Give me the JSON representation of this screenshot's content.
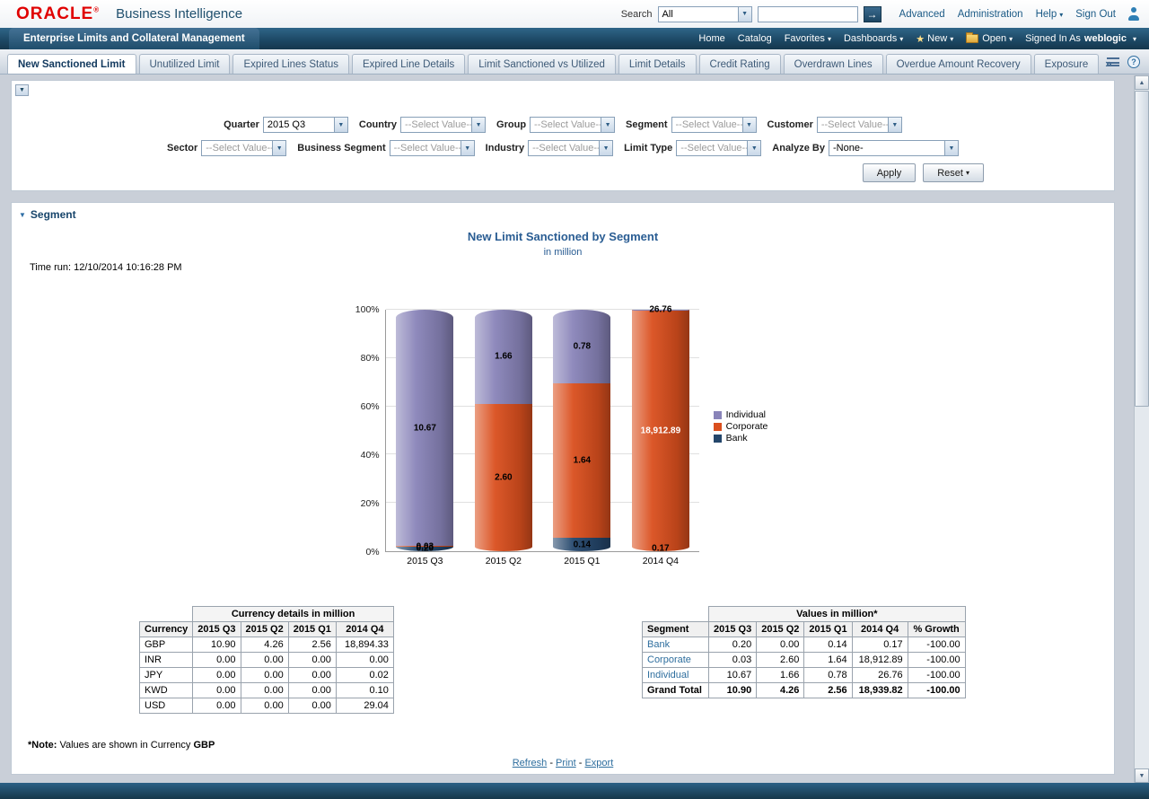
{
  "colors": {
    "oracle_red": "#e00000",
    "navbar_navy": "#1d4a63",
    "title_blue": "#2a5d93",
    "link_blue": "#2e6e9e"
  },
  "icons": {
    "go": "→",
    "caret": "▾",
    "select_arrow": "▼",
    "collapse": "▼",
    "overflow": "»",
    "help": "?",
    "up": "▲",
    "down": "▼",
    "new_star": "★"
  },
  "header": {
    "logo": "ORACLE",
    "logo_mark": "®",
    "product_name": "Business Intelligence",
    "search": {
      "label": "Search",
      "scope_value": "All",
      "input_value": ""
    },
    "links": [
      {
        "label": "Advanced",
        "caret": false
      },
      {
        "label": "Administration",
        "caret": false
      },
      {
        "label": "Help",
        "caret": true
      },
      {
        "label": "Sign Out",
        "caret": false
      }
    ]
  },
  "navbar": {
    "module_tab": "Enterprise Limits and Collateral Management",
    "items": [
      {
        "label": "Home",
        "caret": false,
        "icon": ""
      },
      {
        "label": "Catalog",
        "caret": false,
        "icon": ""
      },
      {
        "label": "Favorites",
        "caret": true,
        "icon": ""
      },
      {
        "label": "Dashboards",
        "caret": true,
        "icon": ""
      },
      {
        "label": "New",
        "caret": true,
        "icon": "new"
      },
      {
        "label": "Open",
        "caret": true,
        "icon": "folder"
      }
    ],
    "signed_in_as": "Signed In As",
    "user": "weblogic"
  },
  "tabs": [
    {
      "label": "New Sanctioned Limit",
      "active": true
    },
    {
      "label": "Unutilized Limit",
      "active": false
    },
    {
      "label": "Expired Lines Status",
      "active": false
    },
    {
      "label": "Expired Line Details",
      "active": false
    },
    {
      "label": "Limit Sanctioned vs Utilized",
      "active": false
    },
    {
      "label": "Limit Details",
      "active": false
    },
    {
      "label": "Credit Rating",
      "active": false
    },
    {
      "label": "Overdrawn Lines",
      "active": false
    },
    {
      "label": "Overdue Amount Recovery",
      "active": false
    },
    {
      "label": "Exposure",
      "active": false
    }
  ],
  "tabs_overflow": "»",
  "filters": {
    "rows": [
      [
        {
          "label": "Quarter",
          "value": "2015 Q3",
          "muted": false,
          "wide": false
        },
        {
          "label": "Country",
          "value": "--Select Value--",
          "muted": true,
          "wide": false
        },
        {
          "label": "Group",
          "value": "--Select Value--",
          "muted": true,
          "wide": false
        },
        {
          "label": "Segment",
          "value": "--Select Value--",
          "muted": true,
          "wide": false
        },
        {
          "label": "Customer",
          "value": "--Select Value--",
          "muted": true,
          "wide": false
        }
      ],
      [
        {
          "label": "Sector",
          "value": "--Select Value--",
          "muted": true,
          "wide": false
        },
        {
          "label": "Business Segment",
          "value": "--Select Value--",
          "muted": true,
          "wide": false
        },
        {
          "label": "Industry",
          "value": "--Select Value--",
          "muted": true,
          "wide": false
        },
        {
          "label": "Limit Type",
          "value": "--Select Value--",
          "muted": true,
          "wide": false
        },
        {
          "label": "Analyze By",
          "value": "-None-",
          "muted": false,
          "wide": true
        }
      ]
    ],
    "apply": "Apply",
    "reset": "Reset"
  },
  "segment_section": {
    "title": "Segment",
    "chart_title": "New Limit Sanctioned by Segment",
    "chart_subtitle": "in million",
    "time_run": "Time run: 12/10/2014 10:16:28 PM"
  },
  "chart_data": {
    "type": "bar",
    "stacked": true,
    "normalized": "percent",
    "title": "New Limit Sanctioned by Segment",
    "subtitle": "in million",
    "categories": [
      "2015 Q3",
      "2015 Q2",
      "2015 Q1",
      "2014 Q4"
    ],
    "series": [
      {
        "name": "Bank",
        "color": "#24466b",
        "values": [
          0.2,
          0.0,
          0.14,
          0.17
        ],
        "labels": [
          "0.20",
          "0.00",
          "0.14",
          "0.17"
        ],
        "label_colors": [
          null,
          null,
          null,
          null
        ]
      },
      {
        "name": "Corporate",
        "color": "#da4f1e",
        "values": [
          0.03,
          2.6,
          1.64,
          18912.89
        ],
        "labels": [
          "0.03",
          "2.60",
          "1.64",
          "18,912.89"
        ],
        "label_colors": [
          null,
          null,
          null,
          "#ffffff"
        ]
      },
      {
        "name": "Individual",
        "color": "#8984b9",
        "values": [
          10.67,
          1.66,
          0.78,
          26.76
        ],
        "labels": [
          "10.67",
          "1.66",
          "0.78",
          "26.76"
        ],
        "label_colors": [
          null,
          null,
          null,
          null
        ]
      }
    ],
    "y_ticks": [
      0,
      20,
      40,
      60,
      80,
      100
    ],
    "y_tick_suffix": "%",
    "ylim": [
      0,
      100
    ],
    "grid": true,
    "legend": [
      "Individual",
      "Corporate",
      "Bank"
    ],
    "legend_position": "right"
  },
  "tables": {
    "currency": {
      "title": "Currency details in million",
      "columns": [
        "Currency",
        "2015 Q3",
        "2015 Q2",
        "2015 Q1",
        "2014 Q4"
      ],
      "rows": [
        [
          "GBP",
          "10.90",
          "4.26",
          "2.56",
          "18,894.33"
        ],
        [
          "INR",
          "0.00",
          "0.00",
          "0.00",
          "0.00"
        ],
        [
          "JPY",
          "0.00",
          "0.00",
          "0.00",
          "0.02"
        ],
        [
          "KWD",
          "0.00",
          "0.00",
          "0.00",
          "0.10"
        ],
        [
          "USD",
          "0.00",
          "0.00",
          "0.00",
          "29.04"
        ]
      ]
    },
    "segment": {
      "title": "Values in million*",
      "columns": [
        "Segment",
        "2015 Q3",
        "2015 Q2",
        "2015 Q1",
        "2014 Q4",
        "% Growth"
      ],
      "rows": [
        [
          "Bank",
          "0.20",
          "0.00",
          "0.14",
          "0.17",
          "-100.00"
        ],
        [
          "Corporate",
          "0.03",
          "2.60",
          "1.64",
          "18,912.89",
          "-100.00"
        ],
        [
          "Individual",
          "10.67",
          "1.66",
          "0.78",
          "26.76",
          "-100.00"
        ]
      ],
      "total_row": [
        "Grand Total",
        "10.90",
        "4.26",
        "2.56",
        "18,939.82",
        "-100.00"
      ]
    }
  },
  "note": {
    "prefix": "*Note:",
    "text": " Values are shown in Currency ",
    "currency": "GBP"
  },
  "footer_links": [
    "Refresh",
    "Print",
    "Export"
  ]
}
